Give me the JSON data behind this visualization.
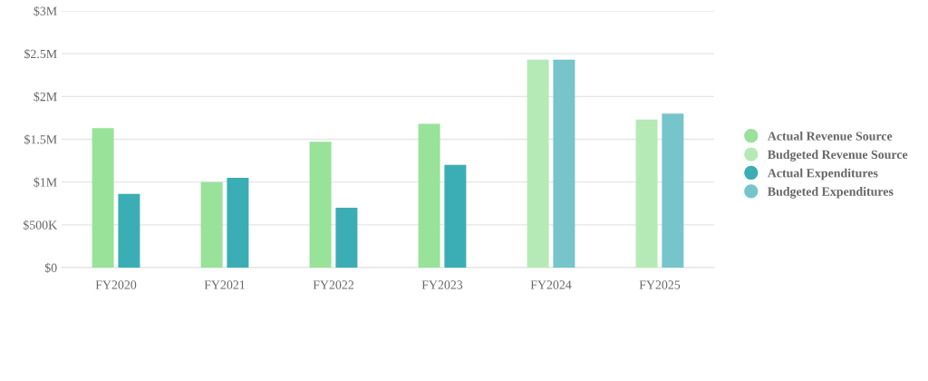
{
  "chart_data": {
    "type": "bar",
    "categories": [
      "FY2020",
      "FY2021",
      "FY2022",
      "FY2023",
      "FY2024",
      "FY2025"
    ],
    "series": [
      {
        "name": "Actual Revenue Source",
        "color": "#98e29a",
        "values": [
          1630000,
          1000000,
          1470000,
          1680000,
          null,
          null
        ]
      },
      {
        "name": "Budgeted Revenue Source",
        "color": "#b5eab6",
        "values": [
          null,
          null,
          null,
          null,
          2430000,
          1730000
        ]
      },
      {
        "name": "Actual Expenditures",
        "color": "#3badb5",
        "values": [
          860000,
          1050000,
          700000,
          1200000,
          null,
          null
        ]
      },
      {
        "name": "Budgeted Expenditures",
        "color": "#75c5ca",
        "values": [
          null,
          null,
          null,
          null,
          2430000,
          1800000
        ]
      }
    ],
    "ylim": [
      0,
      3000000
    ],
    "yticks": [
      {
        "value": 0,
        "label": "$0"
      },
      {
        "value": 500000,
        "label": "$500K"
      },
      {
        "value": 1000000,
        "label": "$1M"
      },
      {
        "value": 1500000,
        "label": "$1.5M"
      },
      {
        "value": 2000000,
        "label": "$2M"
      },
      {
        "value": 2500000,
        "label": "$2.5M"
      },
      {
        "value": 3000000,
        "label": "$3M"
      }
    ],
    "grid": "y",
    "legend": "right"
  }
}
